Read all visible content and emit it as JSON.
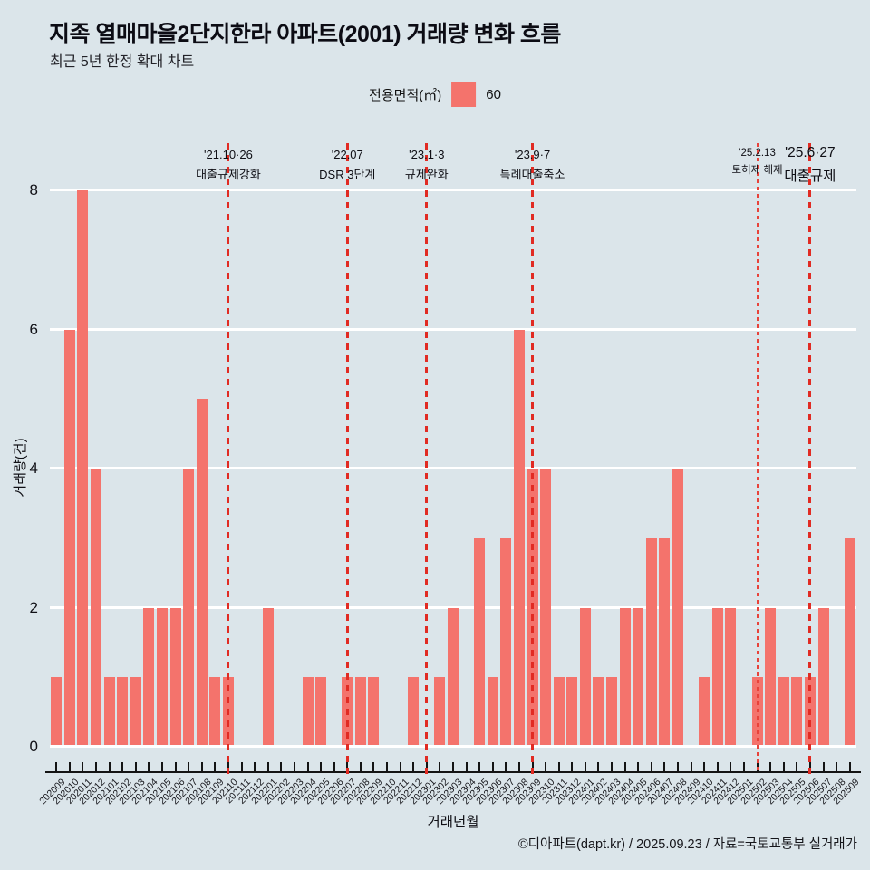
{
  "title": "지족 열매마을2단지한라 아파트(2001) 거래량 변화 흐름",
  "subtitle": "최근 5년 한정 확대 차트",
  "legend": {
    "label": "전용면적(㎡)",
    "value": "60"
  },
  "footer": "©디아파트(dapt.kr) / 2025.09.23 / 자료=국토교통부 실거래가",
  "colors": {
    "background": "#dbe5ea",
    "bar": "#f4736c",
    "event_line": "#e12b23",
    "gridline": "#ffffff",
    "axis": "#141414"
  },
  "chart_data": {
    "type": "bar",
    "title": "지족 열매마을2단지한라 아파트(2001) 거래량 변화 흐름",
    "xlabel": "거래년월",
    "ylabel": "거래량(건)",
    "ylim": [
      0,
      8
    ],
    "yticks": [
      0,
      2,
      4,
      6,
      8
    ],
    "grid": true,
    "legend_position": "top-center",
    "series_name": "60",
    "categories": [
      "202009",
      "202010",
      "202011",
      "202012",
      "202101",
      "202102",
      "202103",
      "202104",
      "202105",
      "202106",
      "202107",
      "202108",
      "202109",
      "202110",
      "202111",
      "202112",
      "202201",
      "202202",
      "202203",
      "202204",
      "202205",
      "202206",
      "202207",
      "202208",
      "202209",
      "202210",
      "202211",
      "202212",
      "202301",
      "202302",
      "202303",
      "202304",
      "202305",
      "202306",
      "202307",
      "202308",
      "202309",
      "202310",
      "202311",
      "202312",
      "202401",
      "202402",
      "202403",
      "202404",
      "202405",
      "202406",
      "202407",
      "202408",
      "202409",
      "202410",
      "202411",
      "202412",
      "202501",
      "202502",
      "202503",
      "202504",
      "202505",
      "202506",
      "202507",
      "202508",
      "202509"
    ],
    "values": [
      1,
      6,
      8,
      4,
      1,
      1,
      1,
      2,
      2,
      2,
      4,
      5,
      1,
      1,
      0,
      0,
      2,
      0,
      0,
      1,
      1,
      0,
      1,
      1,
      1,
      0,
      0,
      1,
      0,
      1,
      2,
      0,
      3,
      1,
      3,
      6,
      4,
      4,
      1,
      1,
      2,
      1,
      1,
      2,
      2,
      3,
      3,
      4,
      0,
      1,
      2,
      2,
      0,
      1,
      2,
      1,
      1,
      1,
      2,
      0,
      3
    ],
    "annotations": [
      {
        "month": "202110",
        "date": "'21.10·26",
        "label": "대출규제강화",
        "style": "dashed",
        "size": "normal"
      },
      {
        "month": "202207",
        "date": "'22.07",
        "label": "DSR 3단계",
        "style": "dashed",
        "size": "normal"
      },
      {
        "month": "202301",
        "date": "'23.1·3",
        "label": "규제완화",
        "style": "dashed",
        "size": "normal"
      },
      {
        "month": "202309",
        "date": "'23.9·7",
        "label": "특례대출축소",
        "style": "dashed",
        "size": "normal"
      },
      {
        "month": "202502",
        "date": "'25.2.13",
        "label": "토허제 해제",
        "style": "dotted-thin",
        "size": "small"
      },
      {
        "month": "202506",
        "date": "'25.6·27",
        "label": "대출규제",
        "style": "dashed",
        "size": "large"
      }
    ]
  }
}
